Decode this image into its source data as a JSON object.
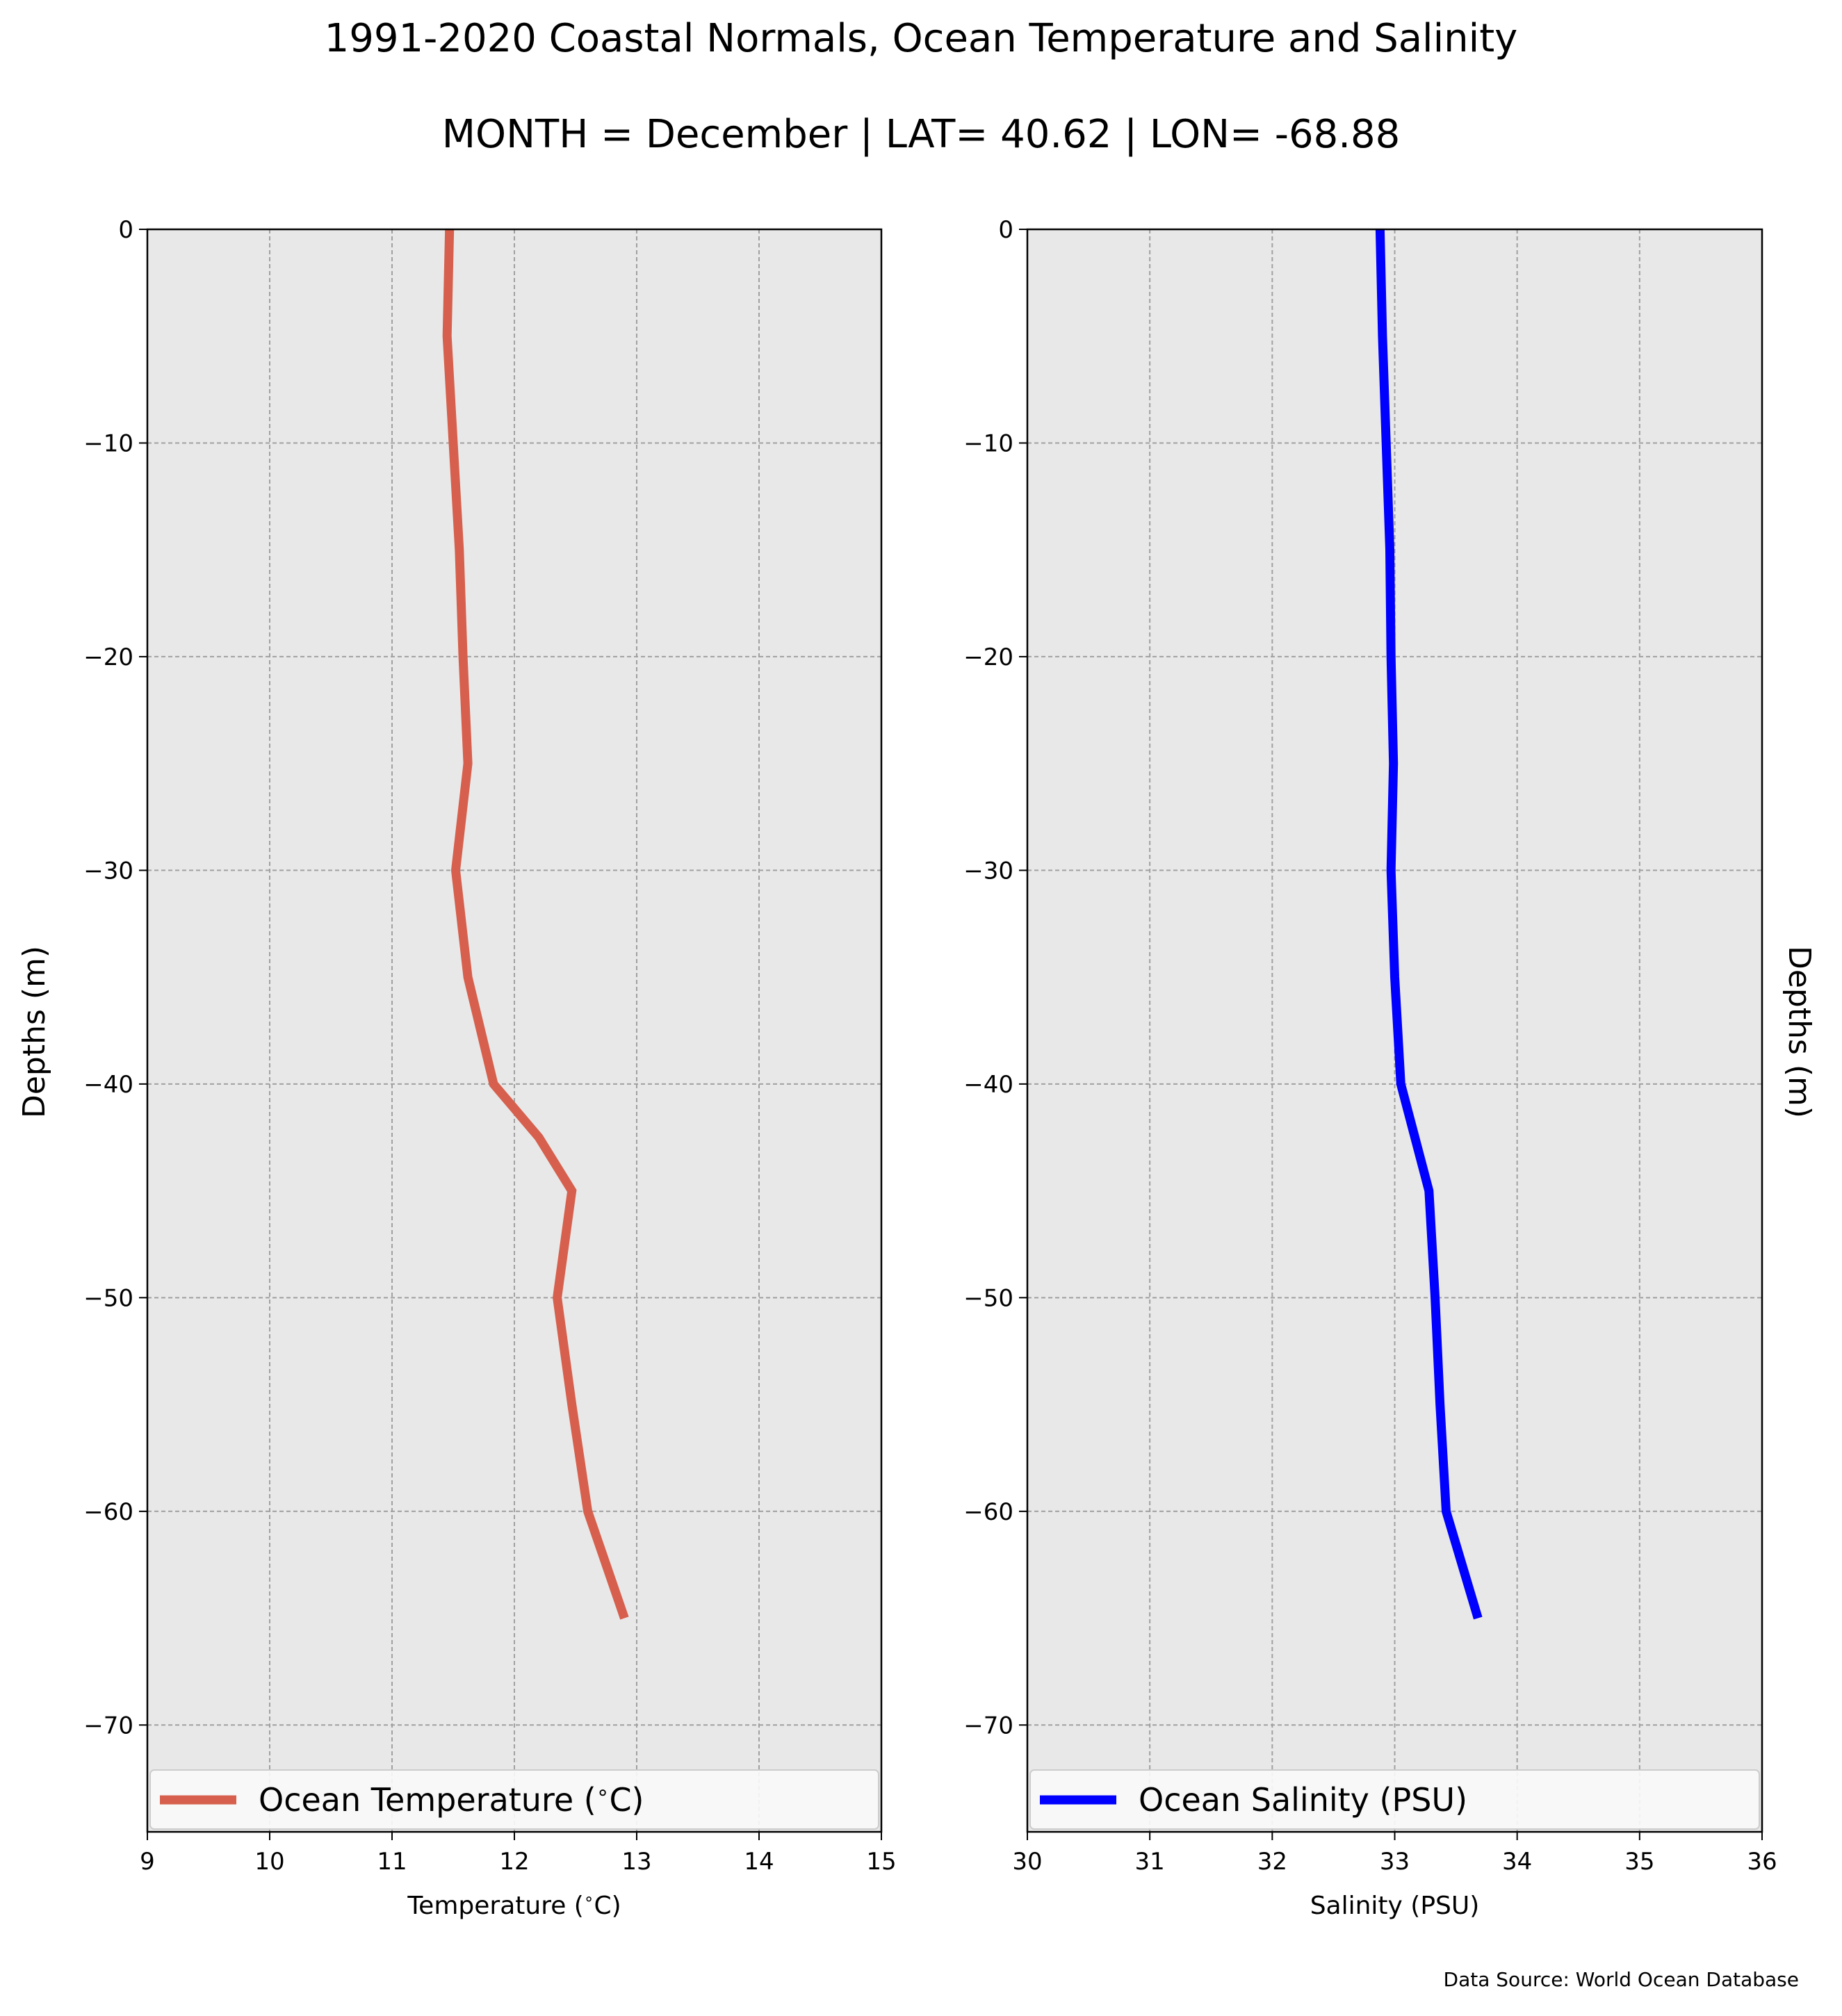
{
  "figure": {
    "title_line1": "1991-2020 Coastal Normals, Ocean Temperature and Salinity",
    "title_line2": "MONTH = December | LAT= 40.62 | LON= -68.88",
    "source": "Data Source: World Ocean Database"
  },
  "colors": {
    "panel_background": "#e8e8e8",
    "temperature_line": "#d6604d",
    "salinity_line": "#0000ff"
  },
  "chart_data": [
    {
      "type": "line",
      "xlabel": "Temperature ($^\\circ$C)",
      "ylabel": "Depths (m)",
      "xlim": [
        9,
        15
      ],
      "ylim": [
        -75,
        0
      ],
      "x_ticks": [
        9,
        10,
        11,
        12,
        13,
        14,
        15
      ],
      "y_ticks": [
        0,
        -10,
        -20,
        -30,
        -40,
        -50,
        -60,
        -70
      ],
      "grid": true,
      "legend_position": "lower",
      "series": [
        {
          "name": "Ocean Temperature ($^\\circ$C)",
          "color": "#d6604d",
          "x": [
            11.47,
            11.45,
            11.5,
            11.55,
            11.58,
            11.62,
            11.52,
            11.62,
            11.83,
            12.2,
            12.47,
            12.35,
            12.47,
            12.6,
            12.9
          ],
          "y": [
            0,
            -5,
            -10,
            -15,
            -20,
            -25,
            -30,
            -35,
            -40,
            -42.5,
            -45,
            -50,
            -55,
            -60,
            -65
          ]
        }
      ]
    },
    {
      "type": "line",
      "xlabel": "Salinity (PSU)",
      "ylabel": "Depths (m)",
      "xlim": [
        30,
        36
      ],
      "ylim": [
        -75,
        0
      ],
      "x_ticks": [
        30,
        31,
        32,
        33,
        34,
        35,
        36
      ],
      "y_ticks": [
        0,
        -10,
        -20,
        -30,
        -40,
        -50,
        -60,
        -70
      ],
      "grid": true,
      "legend_position": "lower",
      "series": [
        {
          "name": "Ocean Salinity (PSU)",
          "color": "#0000ff",
          "x": [
            32.88,
            32.9,
            32.93,
            32.96,
            32.97,
            32.99,
            32.97,
            33.0,
            33.05,
            33.28,
            33.33,
            33.37,
            33.42,
            33.68
          ],
          "y": [
            0,
            -5,
            -10,
            -15,
            -20,
            -25,
            -30,
            -35,
            -40,
            -45,
            -50,
            -55,
            -60,
            -65
          ]
        }
      ]
    }
  ]
}
